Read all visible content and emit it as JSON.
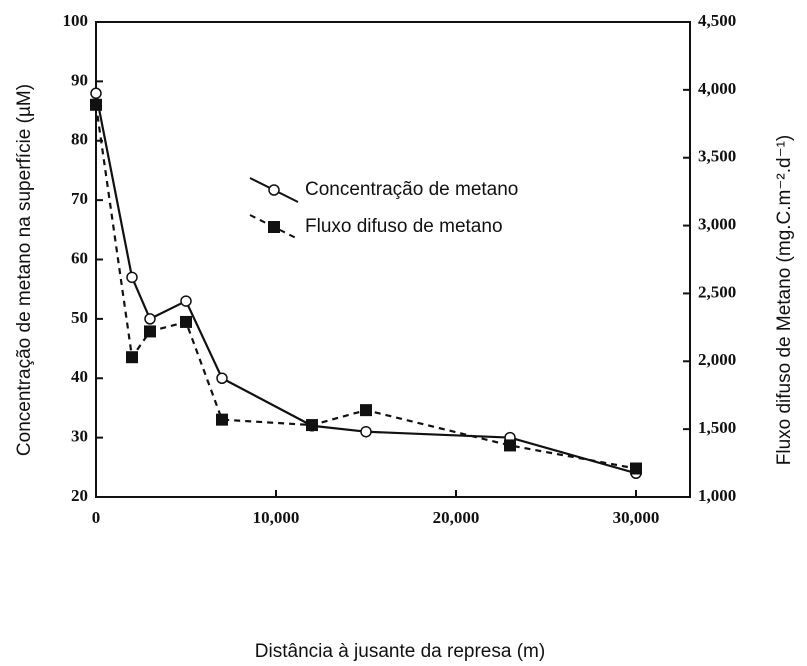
{
  "chart_data": {
    "type": "line",
    "x_label": "Distância à jusante da represa (m)",
    "y_label": "Concentração de metano na superfície (µM)",
    "y2_label": "Fluxo difuso de Metano (mg.C.m⁻².d⁻¹)",
    "xlim": [
      0,
      33000
    ],
    "xticks": [
      0,
      {
        "value": 10000,
        "label": "10,000"
      },
      {
        "value": 20000,
        "label": "20,000"
      },
      {
        "value": 30000,
        "label": "30,000"
      }
    ],
    "ylim": [
      20,
      100
    ],
    "yticks": [
      20,
      30,
      40,
      50,
      60,
      70,
      80,
      90,
      100
    ],
    "y2lim": [
      1000,
      4500
    ],
    "y2ticks": [
      {
        "value": 1000,
        "label": "1,000"
      },
      {
        "value": 1500,
        "label": "1,500"
      },
      {
        "value": 2000,
        "label": "2,000"
      },
      {
        "value": 2500,
        "label": "2,500"
      },
      {
        "value": 3000,
        "label": "3,000"
      },
      {
        "value": 3500,
        "label": "3,500"
      },
      {
        "value": 4000,
        "label": "4,000"
      },
      {
        "value": 4500,
        "label": "4,500"
      }
    ],
    "series": [
      {
        "name": "Concentração de metano",
        "color": "#111111",
        "marker": "open-circle",
        "dash": "solid",
        "x": [
          0,
          2000,
          3000,
          5000,
          7000,
          12000,
          15000,
          23000,
          30000
        ],
        "values": [
          88,
          57,
          50,
          53,
          40,
          32,
          31,
          30,
          24
        ]
      },
      {
        "name": "Fluxo difuso de metano",
        "color": "#111111",
        "marker": "filled-square",
        "dash": "dashed",
        "axis": "y2",
        "x": [
          0,
          2000,
          3000,
          5000,
          7000,
          12000,
          15000,
          23000,
          30000
        ],
        "values": [
          3890,
          2030,
          2220,
          2290,
          1570,
          1530,
          1640,
          1380,
          1210
        ]
      }
    ]
  }
}
